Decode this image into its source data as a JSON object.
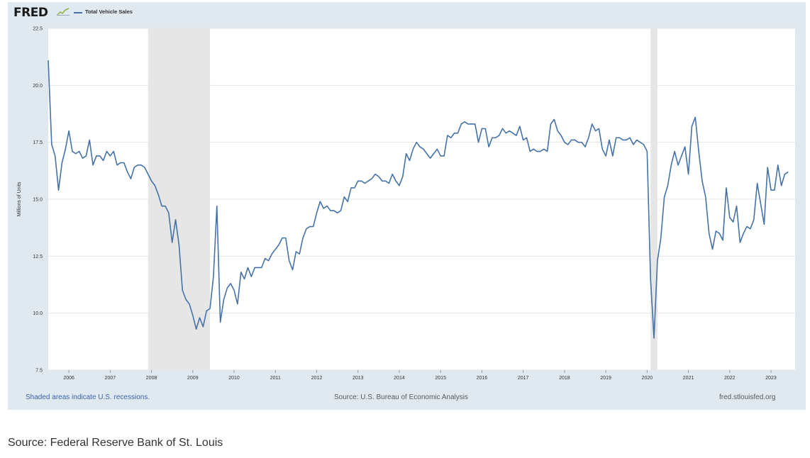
{
  "header": {
    "logo_text": "FRED",
    "legend_label": "Total Vehicle Sales",
    "series_color": "#4572a7"
  },
  "footer": {
    "recession_note": "Shaded areas indicate U.S. recessions.",
    "source_note": "Source: U.S. Bureau of Economic Analysis",
    "site": "fred.stlouisfed.org"
  },
  "page_source": "Source: Federal Reserve Bank of St. Louis",
  "chart_data": {
    "type": "line",
    "title": "",
    "xlabel": "",
    "ylabel": "Millions of Units",
    "ylim": [
      7.5,
      22.5
    ],
    "xlim": [
      "2005-07",
      "2023-08"
    ],
    "y_ticks": [
      "7.5",
      "10.0",
      "12.5",
      "15.0",
      "17.5",
      "20.0",
      "22.5"
    ],
    "x_ticks": [
      "2006",
      "2007",
      "2008",
      "2009",
      "2010",
      "2011",
      "2012",
      "2013",
      "2014",
      "2015",
      "2016",
      "2017",
      "2018",
      "2019",
      "2020",
      "2021",
      "2022",
      "2023"
    ],
    "grid": "horizontal",
    "legend": "top-left",
    "recessions": [
      [
        "2007-12",
        "2009-06"
      ],
      [
        "2020-02",
        "2020-04"
      ]
    ],
    "recession_color": "#e6e6e6",
    "series": [
      {
        "name": "Total Vehicle Sales",
        "start": "2005-07",
        "frequency": "monthly",
        "values": [
          21.1,
          17.4,
          16.9,
          15.4,
          16.6,
          17.2,
          18.0,
          17.1,
          17.0,
          17.1,
          16.8,
          16.9,
          17.6,
          16.5,
          16.9,
          16.9,
          16.7,
          17.1,
          16.9,
          17.1,
          16.5,
          16.6,
          16.6,
          16.2,
          15.9,
          16.4,
          16.5,
          16.5,
          16.4,
          16.1,
          15.8,
          15.6,
          15.2,
          14.7,
          14.7,
          14.4,
          13.1,
          14.1,
          13.0,
          11.0,
          10.6,
          10.4,
          9.9,
          9.3,
          9.8,
          9.4,
          10.1,
          10.2,
          11.6,
          14.7,
          9.6,
          10.6,
          11.1,
          11.3,
          11.0,
          10.4,
          11.8,
          11.5,
          12.0,
          11.6,
          12.0,
          12.0,
          12.0,
          12.4,
          12.3,
          12.6,
          12.8,
          13.0,
          13.3,
          13.3,
          12.3,
          11.9,
          12.7,
          12.6,
          13.3,
          13.7,
          13.8,
          13.8,
          14.4,
          14.9,
          14.6,
          14.7,
          14.5,
          14.5,
          14.4,
          14.5,
          15.1,
          14.9,
          15.5,
          15.5,
          15.8,
          15.8,
          15.7,
          15.8,
          15.9,
          16.1,
          16.0,
          15.8,
          15.8,
          15.7,
          16.1,
          15.8,
          15.6,
          16.0,
          17.0,
          16.7,
          17.2,
          17.5,
          17.3,
          17.2,
          17.0,
          16.8,
          17.0,
          17.2,
          16.9,
          16.9,
          17.8,
          17.7,
          17.9,
          17.9,
          18.3,
          18.4,
          18.3,
          18.3,
          18.3,
          17.5,
          18.1,
          18.1,
          17.3,
          17.7,
          17.7,
          17.8,
          18.1,
          17.9,
          18.0,
          17.9,
          17.8,
          18.2,
          17.6,
          17.7,
          17.1,
          17.2,
          17.1,
          17.1,
          17.2,
          17.1,
          18.3,
          18.5,
          18.0,
          17.8,
          17.5,
          17.4,
          17.6,
          17.6,
          17.5,
          17.5,
          17.3,
          17.7,
          18.3,
          18.0,
          18.1,
          17.2,
          16.9,
          17.6,
          16.9,
          17.7,
          17.7,
          17.6,
          17.6,
          17.7,
          17.4,
          17.6,
          17.5,
          17.4,
          17.1,
          11.5,
          8.9,
          12.3,
          13.3,
          15.1,
          15.6,
          16.5,
          17.1,
          16.5,
          16.9,
          17.3,
          16.1,
          18.2,
          18.6,
          17.1,
          15.8,
          15.1,
          13.5,
          12.8,
          13.6,
          13.5,
          13.2,
          15.5,
          14.2,
          14.0,
          14.7,
          13.1,
          13.5,
          13.8,
          13.7,
          14.1,
          15.7,
          14.8,
          13.9,
          16.4,
          15.4,
          15.4,
          16.5,
          15.6,
          16.1,
          16.2
        ]
      }
    ]
  }
}
